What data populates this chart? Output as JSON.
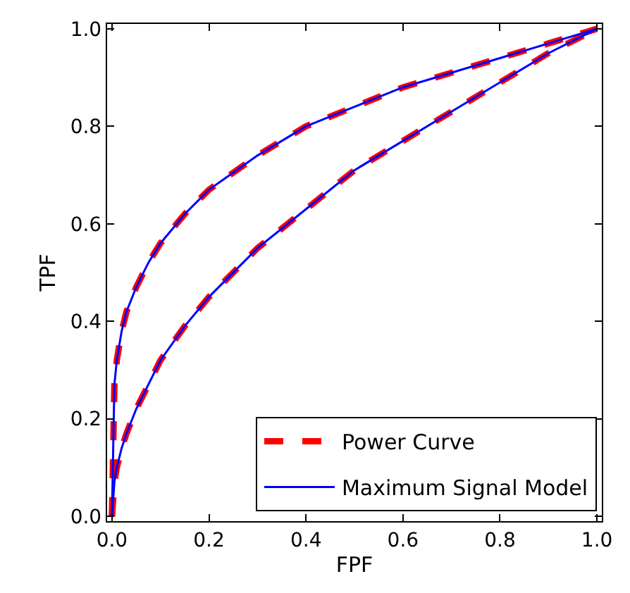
{
  "chart_data": {
    "type": "line",
    "xlabel": "FPF",
    "ylabel": "TPF",
    "series": [
      {
        "name": "Power Curve",
        "color": "#ff0000",
        "line_style": "dashed",
        "x": [
          0,
          0.005,
          0.01,
          0.02,
          0.03,
          0.05,
          0.075,
          0.1,
          0.15,
          0.2,
          0.3,
          0.4,
          0.5,
          0.6,
          0.7,
          0.8,
          0.9,
          1.0,
          null,
          0,
          0.005,
          0.01,
          0.02,
          0.03,
          0.05,
          0.075,
          0.1,
          0.15,
          0.2,
          0.3,
          0.4,
          0.5,
          0.6,
          0.7,
          0.8,
          0.9,
          1.0
        ],
        "values": [
          0,
          0.27,
          0.32,
          0.38,
          0.42,
          0.47,
          0.52,
          0.56,
          0.62,
          0.67,
          0.74,
          0.8,
          0.84,
          0.88,
          0.91,
          0.94,
          0.97,
          1.0,
          null,
          0,
          0.07,
          0.1,
          0.14,
          0.17,
          0.22,
          0.27,
          0.32,
          0.39,
          0.45,
          0.55,
          0.63,
          0.71,
          0.77,
          0.83,
          0.89,
          0.95,
          1.0
        ]
      },
      {
        "name": "Maximum Signal Model",
        "color": "#0000ff",
        "line_style": "solid",
        "x": [
          0,
          0.005,
          0.01,
          0.02,
          0.03,
          0.05,
          0.075,
          0.1,
          0.15,
          0.2,
          0.3,
          0.4,
          0.5,
          0.6,
          0.7,
          0.8,
          0.9,
          1.0,
          null,
          0,
          0.005,
          0.01,
          0.02,
          0.03,
          0.05,
          0.075,
          0.1,
          0.15,
          0.2,
          0.3,
          0.4,
          0.5,
          0.6,
          0.7,
          0.8,
          0.9,
          1.0
        ],
        "values": [
          0,
          0.27,
          0.32,
          0.38,
          0.42,
          0.47,
          0.52,
          0.56,
          0.62,
          0.67,
          0.74,
          0.8,
          0.84,
          0.88,
          0.91,
          0.94,
          0.97,
          1.0,
          null,
          0,
          0.07,
          0.1,
          0.14,
          0.17,
          0.22,
          0.27,
          0.32,
          0.39,
          0.45,
          0.55,
          0.63,
          0.71,
          0.77,
          0.83,
          0.89,
          0.95,
          1.0
        ]
      }
    ],
    "xlim": [
      -0.01,
      1.01
    ],
    "ylim": [
      -0.01,
      1.01
    ],
    "xticks": [
      {
        "value": 0,
        "label": "0.0"
      },
      0.2,
      0.4,
      0.6,
      0.8,
      {
        "value": 1,
        "label": "1.0"
      }
    ],
    "yticks": [
      {
        "value": 0,
        "label": "0.0"
      },
      0.2,
      0.4,
      0.6,
      0.8,
      {
        "value": 1,
        "label": "1.0"
      }
    ],
    "legend": "bottom right",
    "marker": "none"
  }
}
